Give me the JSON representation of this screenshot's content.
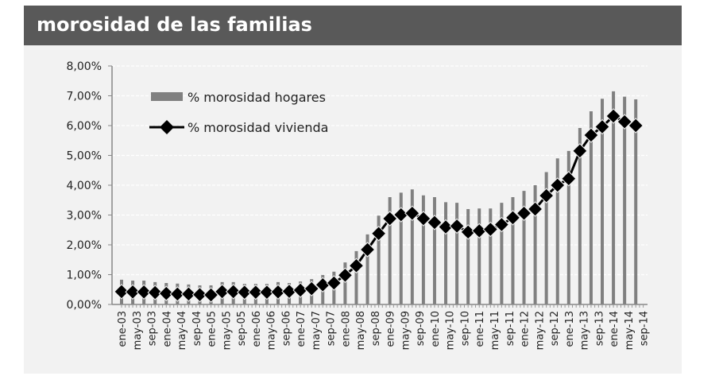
{
  "header": {
    "title": "morosidad de las familias"
  },
  "colors": {
    "header_bg": "#595959",
    "panel_bg": "#f2f2f2",
    "bars": "#808080",
    "line": "#000000"
  },
  "chart_data": {
    "type": "bar+line",
    "title": "",
    "xlabel": "",
    "ylabel": "",
    "ylim": [
      0,
      8
    ],
    "y_ticks": [
      "0,00%",
      "1,00%",
      "2,00%",
      "3,00%",
      "4,00%",
      "5,00%",
      "6,00%",
      "7,00%",
      "8,00%"
    ],
    "x_ticks": [
      "ene-03",
      "may-03",
      "sep-03",
      "ene-04",
      "may-04",
      "sep-04",
      "ene-05",
      "may-05",
      "sep-05",
      "ene-06",
      "may-06",
      "sep-06",
      "ene-07",
      "may-07",
      "sep-07",
      "ene-08",
      "may-08",
      "sep-08",
      "ene-09",
      "may-09",
      "sep-09",
      "ene-10",
      "may-10",
      "sep-10",
      "ene-11",
      "may-11",
      "sep-11",
      "ene-12",
      "may-12",
      "sep-12",
      "ene-13",
      "may-13",
      "sep-13",
      "ene-14",
      "may-14",
      "sep-14"
    ],
    "grid": "horizontal dashed",
    "legend": "top-left",
    "x": [
      "2003-01",
      "2003-04",
      "2003-07",
      "2003-10",
      "2004-01",
      "2004-04",
      "2004-07",
      "2004-10",
      "2005-01",
      "2005-04",
      "2005-07",
      "2005-10",
      "2006-01",
      "2006-04",
      "2006-07",
      "2006-10",
      "2007-01",
      "2007-04",
      "2007-07",
      "2007-10",
      "2008-01",
      "2008-04",
      "2008-07",
      "2008-10",
      "2009-01",
      "2009-04",
      "2009-07",
      "2009-10",
      "2010-01",
      "2010-04",
      "2010-07",
      "2010-10",
      "2011-01",
      "2011-04",
      "2011-07",
      "2011-10",
      "2012-01",
      "2012-04",
      "2012-07",
      "2012-10",
      "2013-01",
      "2013-04",
      "2013-07",
      "2013-10",
      "2014-01",
      "2014-04",
      "2014-07"
    ],
    "series": [
      {
        "name": "% morosidad hogares",
        "type": "bar",
        "values": [
          0.83,
          0.8,
          0.8,
          0.75,
          0.72,
          0.7,
          0.67,
          0.64,
          0.64,
          0.75,
          0.75,
          0.69,
          0.69,
          0.69,
          0.75,
          0.72,
          0.77,
          0.85,
          0.99,
          1.1,
          1.41,
          1.79,
          2.35,
          2.98,
          3.6,
          3.75,
          3.86,
          3.66,
          3.6,
          3.43,
          3.41,
          3.2,
          3.22,
          3.22,
          3.41,
          3.6,
          3.81,
          4.0,
          4.44,
          4.9,
          5.15,
          5.92,
          6.48,
          6.9,
          7.15,
          6.97,
          6.88
        ]
      },
      {
        "name": "% morosidad vivienda",
        "type": "line",
        "values": [
          0.43,
          0.42,
          0.42,
          0.4,
          0.37,
          0.35,
          0.35,
          0.33,
          0.32,
          0.43,
          0.43,
          0.41,
          0.41,
          0.41,
          0.42,
          0.44,
          0.48,
          0.53,
          0.66,
          0.72,
          0.98,
          1.3,
          1.84,
          2.38,
          2.88,
          3.01,
          3.06,
          2.88,
          2.75,
          2.6,
          2.63,
          2.43,
          2.47,
          2.52,
          2.68,
          2.91,
          3.06,
          3.2,
          3.65,
          4.0,
          4.22,
          5.15,
          5.68,
          5.96,
          6.32,
          6.13,
          6.0
        ]
      }
    ]
  }
}
